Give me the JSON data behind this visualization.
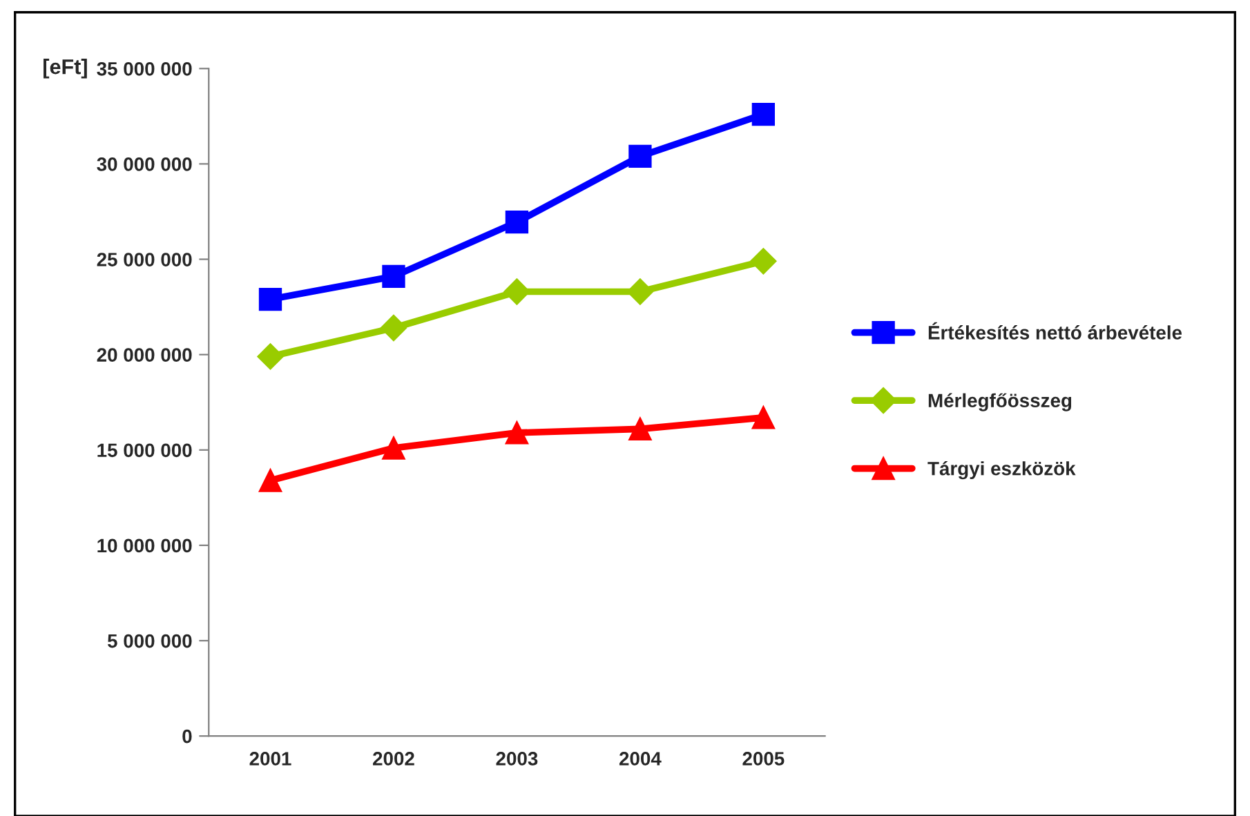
{
  "chart_data": {
    "type": "line",
    "ylabel": "[eFt]",
    "categories": [
      "2001",
      "2002",
      "2003",
      "2004",
      "2005"
    ],
    "series": [
      {
        "name": "Értékesítés nettó árbevétele",
        "color": "#0000ff",
        "marker": "square",
        "values": [
          22900000,
          24100000,
          26950000,
          30400000,
          32600000
        ]
      },
      {
        "name": "Mérlegfőösszeg",
        "color": "#99cc00",
        "marker": "diamond",
        "values": [
          19900000,
          21400000,
          23300000,
          23300000,
          24900000
        ]
      },
      {
        "name": "Tárgyi eszközök",
        "color": "#ff0000",
        "marker": "triangle",
        "values": [
          13400000,
          15100000,
          15900000,
          16100000,
          16700000
        ]
      }
    ],
    "ylim": [
      0,
      35000000
    ],
    "yticks": [
      {
        "value": 0,
        "label": "0"
      },
      {
        "value": 5000000,
        "label": "5 000 000"
      },
      {
        "value": 10000000,
        "label": "10 000 000"
      },
      {
        "value": 15000000,
        "label": "15 000 000"
      },
      {
        "value": 20000000,
        "label": "20 000 000"
      },
      {
        "value": 25000000,
        "label": "25 000 000"
      },
      {
        "value": 30000000,
        "label": "30 000 000"
      },
      {
        "value": 35000000,
        "label": "35 000 000"
      }
    ],
    "grid": false,
    "legend": "right",
    "line_style": "solid"
  }
}
